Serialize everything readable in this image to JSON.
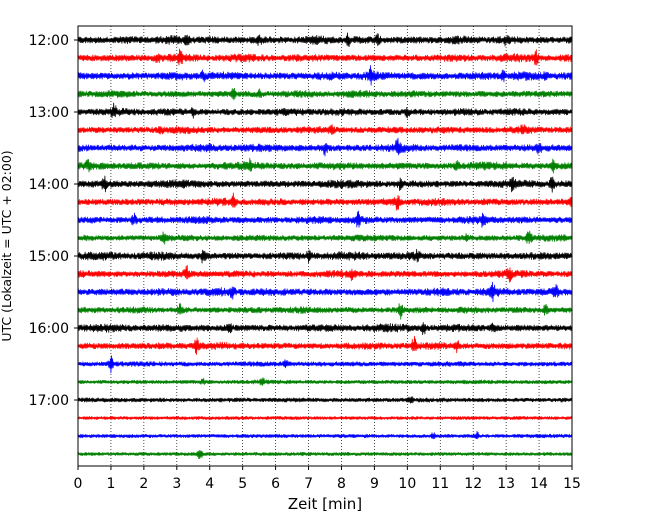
{
  "chart_data": {
    "type": "line",
    "title": "",
    "xlabel": "Zeit  [min]",
    "ylabel": "UTC (Lokalzeit = UTC + 02:00)",
    "xlim": [
      0,
      15
    ],
    "x_ticks": [
      0,
      1,
      2,
      3,
      4,
      5,
      6,
      7,
      8,
      9,
      10,
      11,
      12,
      13,
      14,
      15
    ],
    "y_tick_labels": [
      "12:00",
      "13:00",
      "14:00",
      "15:00",
      "16:00",
      "17:00"
    ],
    "vertical_grid": "dotted",
    "series_colors": [
      "#000000",
      "#ff0000",
      "#0000ff",
      "#008000"
    ],
    "trace_start_times": [
      "12:00",
      "12:15",
      "12:30",
      "12:45",
      "13:00",
      "13:15",
      "13:30",
      "13:45",
      "14:00",
      "14:15",
      "14:30",
      "14:45",
      "15:00",
      "15:15",
      "15:30",
      "15:45",
      "16:00",
      "16:15",
      "16:30",
      "16:45",
      "17:00",
      "17:15",
      "17:30",
      "17:45"
    ],
    "trace_activity": [
      0.9,
      0.85,
      0.9,
      0.75,
      0.8,
      0.75,
      0.85,
      0.85,
      0.85,
      0.8,
      0.8,
      0.65,
      0.9,
      0.75,
      0.85,
      0.65,
      0.85,
      0.75,
      0.45,
      0.3,
      0.35,
      0.2,
      0.25,
      0.22
    ],
    "trace_events": [
      [
        [
          3.3,
          0.6
        ],
        [
          5.5,
          0.5
        ],
        [
          8.2,
          0.7
        ],
        [
          9.1,
          0.5
        ],
        [
          13.0,
          0.6
        ]
      ],
      [
        [
          2.4,
          0.6
        ],
        [
          3.1,
          0.8
        ],
        [
          13.9,
          0.8
        ]
      ],
      [
        [
          3.8,
          0.5
        ],
        [
          8.9,
          0.9
        ],
        [
          12.9,
          0.5
        ],
        [
          14.2,
          0.5
        ]
      ],
      [
        [
          4.7,
          0.8
        ],
        [
          5.5,
          0.4
        ]
      ],
      [
        [
          1.1,
          0.8
        ],
        [
          3.5,
          0.5
        ],
        [
          10.0,
          0.5
        ]
      ],
      [
        [
          2.5,
          0.6
        ],
        [
          7.7,
          0.6
        ],
        [
          13.5,
          0.7
        ]
      ],
      [
        [
          4.0,
          0.5
        ],
        [
          7.5,
          0.7
        ],
        [
          9.7,
          0.8
        ],
        [
          14.0,
          0.5
        ]
      ],
      [
        [
          0.3,
          0.6
        ],
        [
          5.2,
          0.6
        ],
        [
          11.5,
          0.5
        ],
        [
          14.4,
          0.8
        ]
      ],
      [
        [
          0.8,
          0.8
        ],
        [
          9.8,
          0.6
        ],
        [
          13.2,
          0.7
        ],
        [
          14.4,
          0.8
        ]
      ],
      [
        [
          4.7,
          0.8
        ],
        [
          9.7,
          0.9
        ],
        [
          15.0,
          0.7
        ]
      ],
      [
        [
          1.7,
          0.6
        ],
        [
          8.5,
          1.0
        ],
        [
          12.3,
          0.6
        ]
      ],
      [
        [
          2.6,
          0.6
        ],
        [
          11.8,
          0.5
        ],
        [
          13.7,
          1.0
        ]
      ],
      [
        [
          3.8,
          0.7
        ],
        [
          7.0,
          0.6
        ],
        [
          10.3,
          0.5
        ]
      ],
      [
        [
          3.3,
          0.8
        ],
        [
          8.3,
          0.6
        ],
        [
          13.1,
          0.7
        ]
      ],
      [
        [
          4.7,
          0.6
        ],
        [
          12.6,
          0.9
        ],
        [
          14.5,
          0.8
        ]
      ],
      [
        [
          3.1,
          0.6
        ],
        [
          9.8,
          1.1
        ],
        [
          14.2,
          0.6
        ]
      ],
      [
        [
          4.6,
          0.6
        ],
        [
          10.5,
          0.8
        ],
        [
          12.6,
          0.6
        ]
      ],
      [
        [
          3.6,
          0.8
        ],
        [
          10.2,
          1.0
        ],
        [
          11.5,
          0.6
        ]
      ],
      [
        [
          1.0,
          0.9
        ],
        [
          6.3,
          0.4
        ]
      ],
      [
        [
          3.8,
          0.3
        ],
        [
          5.6,
          0.4
        ]
      ],
      [
        [
          10.1,
          0.4
        ]
      ],
      [],
      [
        [
          10.8,
          0.4
        ],
        [
          12.1,
          0.5
        ]
      ],
      [
        [
          3.7,
          1.0
        ]
      ]
    ]
  }
}
